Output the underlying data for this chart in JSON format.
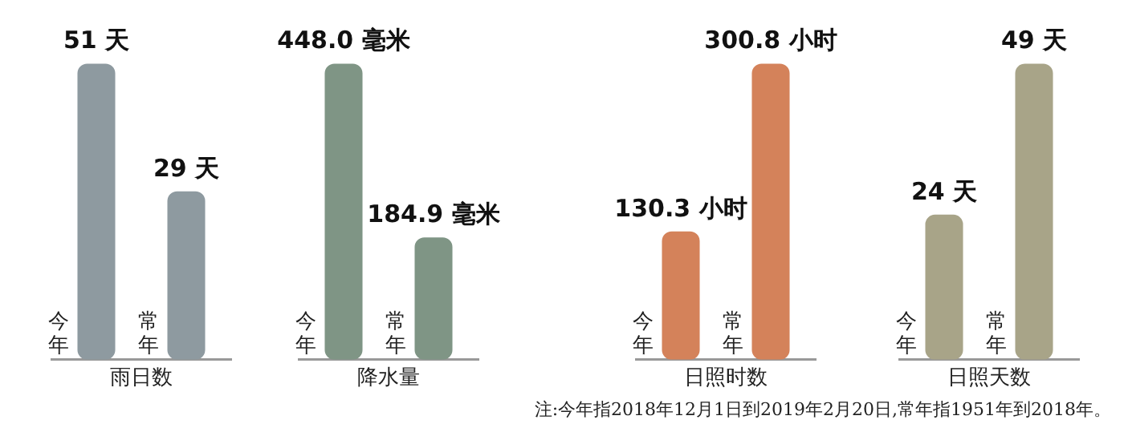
{
  "chart_data": [
    {
      "type": "bar",
      "xlabel": "雨日数",
      "categories": [
        "今年",
        "常年"
      ],
      "values": [
        51,
        29
      ],
      "value_labels": [
        "51 天",
        "29 天"
      ],
      "color": "#8e9aa0"
    },
    {
      "type": "bar",
      "xlabel": "降水量",
      "categories": [
        "今年",
        "常年"
      ],
      "values": [
        448.0,
        184.9
      ],
      "value_labels": [
        "448.0 毫米",
        "184.9 毫米"
      ],
      "color": "#7f9585"
    },
    {
      "type": "bar",
      "xlabel": "日照时数",
      "categories": [
        "今年",
        "常年"
      ],
      "values": [
        130.3,
        300.8
      ],
      "value_labels": [
        "130.3 小时",
        "300.8 小时"
      ],
      "color": "#d4825a"
    },
    {
      "type": "bar",
      "xlabel": "日照天数",
      "categories": [
        "今年",
        "常年"
      ],
      "values": [
        24,
        49
      ],
      "value_labels": [
        "24 天",
        "49 天"
      ],
      "color": "#a8a488",
      "annotations": [
        "注:今年指2018年12月1日到2019年2月20日,常年指1951年到2018年。"
      ]
    }
  ]
}
